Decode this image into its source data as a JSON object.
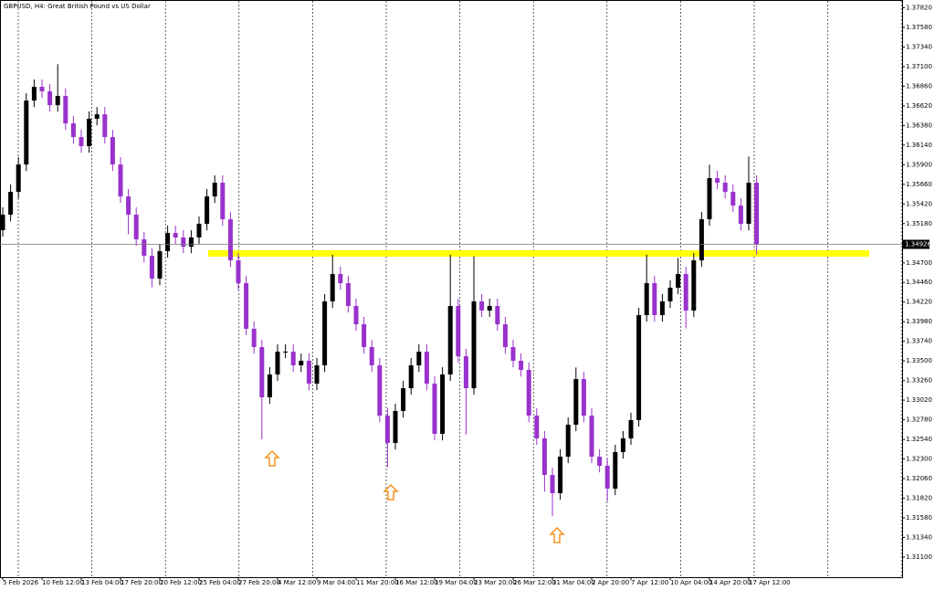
{
  "chart_data": {
    "type": "candlestick",
    "title": "GBPUSD, H4:  Great British Pound vs US Dollar",
    "up_color": "#000000",
    "down_color": "#9932cc",
    "categories": [
      "5 Feb 2026",
      null,
      null,
      null,
      null,
      "10 Feb 12:00",
      null,
      null,
      null,
      null,
      "13 Feb 04:00",
      null,
      null,
      null,
      null,
      "17 Feb 20:00",
      null,
      null,
      null,
      null,
      "20 Feb 12:00",
      null,
      null,
      null,
      null,
      "25 Feb 04:00",
      null,
      null,
      null,
      null,
      "27 Feb 20:00",
      null,
      null,
      null,
      null,
      "4 Mar 12:00",
      null,
      null,
      null,
      null,
      "9 Mar 04:00",
      null,
      null,
      null,
      null,
      "11 Mar 20:00",
      null,
      null,
      null,
      null,
      "16 Mar 12:00",
      null,
      null,
      null,
      null,
      "19 Mar 04:00",
      null,
      null,
      null,
      null,
      "23 Mar 20:00",
      null,
      null,
      null,
      null,
      "26 Mar 12:00",
      null,
      null,
      null,
      null,
      "31 Mar 04:00",
      null,
      null,
      null,
      null,
      "2 Apr 20:00",
      null,
      null,
      null,
      null,
      "7 Apr 12:00",
      null,
      null,
      null,
      null,
      "10 Apr 04:00",
      null,
      null,
      null,
      null,
      "14 Apr 20:00",
      null,
      null,
      null,
      null,
      "17 Apr 12:00",
      null
    ],
    "open": [
      1.351,
      1.35289,
      1.35568,
      1.35903,
      1.36685,
      1.36853,
      1.36797,
      1.36629,
      1.36741,
      1.36406,
      1.36238,
      1.36127,
      1.36462,
      1.36517,
      1.36238,
      1.35903,
      1.35512,
      1.35289,
      1.34987,
      1.34786,
      1.34507,
      1.34842,
      1.35065,
      1.3501,
      1.34898,
      1.3501,
      1.35177,
      1.35512,
      1.3568,
      1.35233,
      1.3473,
      1.34451,
      1.33893,
      1.33669,
      1.33055,
      1.33334,
      1.33613,
      1.33613,
      1.33446,
      1.33502,
      1.33222,
      1.33446,
      1.34228,
      1.34563,
      1.34451,
      1.34172,
      1.33948,
      1.33669,
      1.33446,
      1.32831,
      1.32496,
      1.32887,
      1.33166,
      1.33446,
      1.33613,
      1.33222,
      1.32608,
      1.33334,
      1.34172,
      1.33557,
      1.33166,
      1.34228,
      1.34116,
      1.34172,
      1.33948,
      1.33669,
      1.33502,
      1.3339,
      1.32831,
      1.32552,
      1.32105,
      1.31882,
      1.32329,
      1.3272,
      1.33278,
      1.32831,
      1.32329,
      1.32217,
      1.31938,
      1.32385,
      1.32552,
      1.32776,
      1.3406,
      1.34451,
      1.3406,
      1.34228,
      1.34395,
      1.34563,
      1.34116,
      1.3473,
      1.35233,
      1.35736,
      1.3568,
      1.35568,
      1.354,
      1.35177,
      1.3568
    ],
    "high": [
      1.35379,
      1.35658,
      1.35993,
      1.36775,
      1.36943,
      1.36943,
      1.36887,
      1.3713,
      1.36831,
      1.36496,
      1.36328,
      1.36552,
      1.36607,
      1.36607,
      1.36328,
      1.35993,
      1.35602,
      1.35379,
      1.35077,
      1.34876,
      1.34932,
      1.35155,
      1.35155,
      1.351,
      1.351,
      1.35267,
      1.35602,
      1.3577,
      1.3577,
      1.35323,
      1.3482,
      1.34541,
      1.33983,
      1.33759,
      1.33424,
      1.33703,
      1.33703,
      1.33703,
      1.33592,
      1.33592,
      1.33536,
      1.34318,
      1.348,
      1.34653,
      1.34541,
      1.34262,
      1.34038,
      1.33759,
      1.33536,
      1.32921,
      1.32977,
      1.33256,
      1.33536,
      1.33703,
      1.33703,
      1.33312,
      1.33424,
      1.348,
      1.34262,
      1.33647,
      1.3478,
      1.34318,
      1.34262,
      1.34262,
      1.34038,
      1.33759,
      1.33592,
      1.3348,
      1.32921,
      1.32642,
      1.32195,
      1.32419,
      1.3281,
      1.3342,
      1.33368,
      1.32921,
      1.32419,
      1.32307,
      1.32475,
      1.32642,
      1.32866,
      1.3415,
      1.348,
      1.34541,
      1.34318,
      1.34485,
      1.3476,
      1.34653,
      1.3482,
      1.35323,
      1.359,
      1.35826,
      1.3577,
      1.35658,
      1.3549,
      1.36,
      1.3577
    ],
    "low": [
      1.3502,
      1.35209,
      1.35488,
      1.35823,
      1.36605,
      1.36717,
      1.36549,
      1.36549,
      1.36326,
      1.36158,
      1.36047,
      1.36047,
      1.36382,
      1.36158,
      1.35823,
      1.35432,
      1.3505,
      1.34907,
      1.34706,
      1.344,
      1.34427,
      1.34762,
      1.3493,
      1.34818,
      1.34818,
      1.3493,
      1.35097,
      1.35432,
      1.35153,
      1.3465,
      1.34371,
      1.33813,
      1.33589,
      1.3254,
      1.32975,
      1.33254,
      1.33533,
      1.33366,
      1.33366,
      1.33142,
      1.33142,
      1.33366,
      1.34148,
      1.34371,
      1.34092,
      1.33868,
      1.33589,
      1.33366,
      1.32751,
      1.322,
      1.32416,
      1.32807,
      1.33086,
      1.33366,
      1.33142,
      1.32528,
      1.32528,
      1.33254,
      1.33477,
      1.326,
      1.33086,
      1.34036,
      1.34036,
      1.33868,
      1.33589,
      1.33422,
      1.3331,
      1.32751,
      1.32472,
      1.319,
      1.316,
      1.31802,
      1.32249,
      1.3264,
      1.32751,
      1.32249,
      1.32137,
      1.3178,
      1.31858,
      1.32305,
      1.32472,
      1.32696,
      1.3398,
      1.3398,
      1.3398,
      1.34148,
      1.34315,
      1.339,
      1.34036,
      1.3465,
      1.35153,
      1.356,
      1.35488,
      1.3532,
      1.35097,
      1.35097,
      1.348
    ],
    "close": [
      1.35289,
      1.35568,
      1.35903,
      1.36685,
      1.36853,
      1.36797,
      1.36629,
      1.36741,
      1.36406,
      1.36238,
      1.36127,
      1.36462,
      1.36517,
      1.36238,
      1.35903,
      1.35512,
      1.35289,
      1.34987,
      1.34786,
      1.34507,
      1.34842,
      1.35065,
      1.3501,
      1.34898,
      1.3501,
      1.35177,
      1.35512,
      1.3568,
      1.35233,
      1.3473,
      1.34451,
      1.33893,
      1.33669,
      1.33055,
      1.33334,
      1.33613,
      1.33613,
      1.33446,
      1.33502,
      1.33222,
      1.33446,
      1.34228,
      1.34563,
      1.34451,
      1.34172,
      1.33948,
      1.33669,
      1.33446,
      1.32831,
      1.32496,
      1.32887,
      1.33166,
      1.33446,
      1.33613,
      1.33222,
      1.32608,
      1.33334,
      1.34172,
      1.33557,
      1.33166,
      1.34228,
      1.34116,
      1.34172,
      1.33948,
      1.33669,
      1.33502,
      1.3339,
      1.32831,
      1.32552,
      1.32105,
      1.31882,
      1.32329,
      1.3272,
      1.33278,
      1.32831,
      1.32329,
      1.32217,
      1.31938,
      1.32385,
      1.32552,
      1.32776,
      1.3406,
      1.34451,
      1.3406,
      1.34228,
      1.34395,
      1.34563,
      1.34116,
      1.3473,
      1.35233,
      1.35736,
      1.3568,
      1.35568,
      1.354,
      1.35177,
      1.3568,
      1.34926
    ],
    "last_price": 1.34926,
    "ylim": [
      1.30854,
      1.37915
    ],
    "yticks": [
      {
        "value": 1.311,
        "label": "1.31100"
      },
      {
        "value": 1.3134,
        "label": "1.31340"
      },
      {
        "value": 1.3158,
        "label": "1.31580"
      },
      {
        "value": 1.3182,
        "label": "1.31820"
      },
      {
        "value": 1.3206,
        "label": "1.32060"
      },
      {
        "value": 1.323,
        "label": "1.32300"
      },
      {
        "value": 1.3254,
        "label": "1.32540"
      },
      {
        "value": 1.3278,
        "label": "1.32780"
      },
      {
        "value": 1.3302,
        "label": "1.33020"
      },
      {
        "value": 1.3326,
        "label": "1.33260"
      },
      {
        "value": 1.335,
        "label": "1.33500"
      },
      {
        "value": 1.3374,
        "label": "1.33740"
      },
      {
        "value": 1.3398,
        "label": "1.33980"
      },
      {
        "value": 1.3422,
        "label": "1.34220"
      },
      {
        "value": 1.3446,
        "label": "1.34460"
      },
      {
        "value": 1.347,
        "label": "1.34700"
      },
      {
        "value": 1.3518,
        "label": "1.35180"
      },
      {
        "value": 1.3542,
        "label": "1.35420"
      },
      {
        "value": 1.3566,
        "label": "1.35660"
      },
      {
        "value": 1.359,
        "label": "1.35900"
      },
      {
        "value": 1.3614,
        "label": "1.36140"
      },
      {
        "value": 1.3638,
        "label": "1.36380"
      },
      {
        "value": 1.3662,
        "label": "1.36620"
      },
      {
        "value": 1.3686,
        "label": "1.36860"
      },
      {
        "value": 1.371,
        "label": "1.37100"
      },
      {
        "value": 1.3734,
        "label": "1.37340"
      },
      {
        "value": 1.3758,
        "label": "1.37580"
      },
      {
        "value": 1.3782,
        "label": "1.37820"
      }
    ]
  }
}
